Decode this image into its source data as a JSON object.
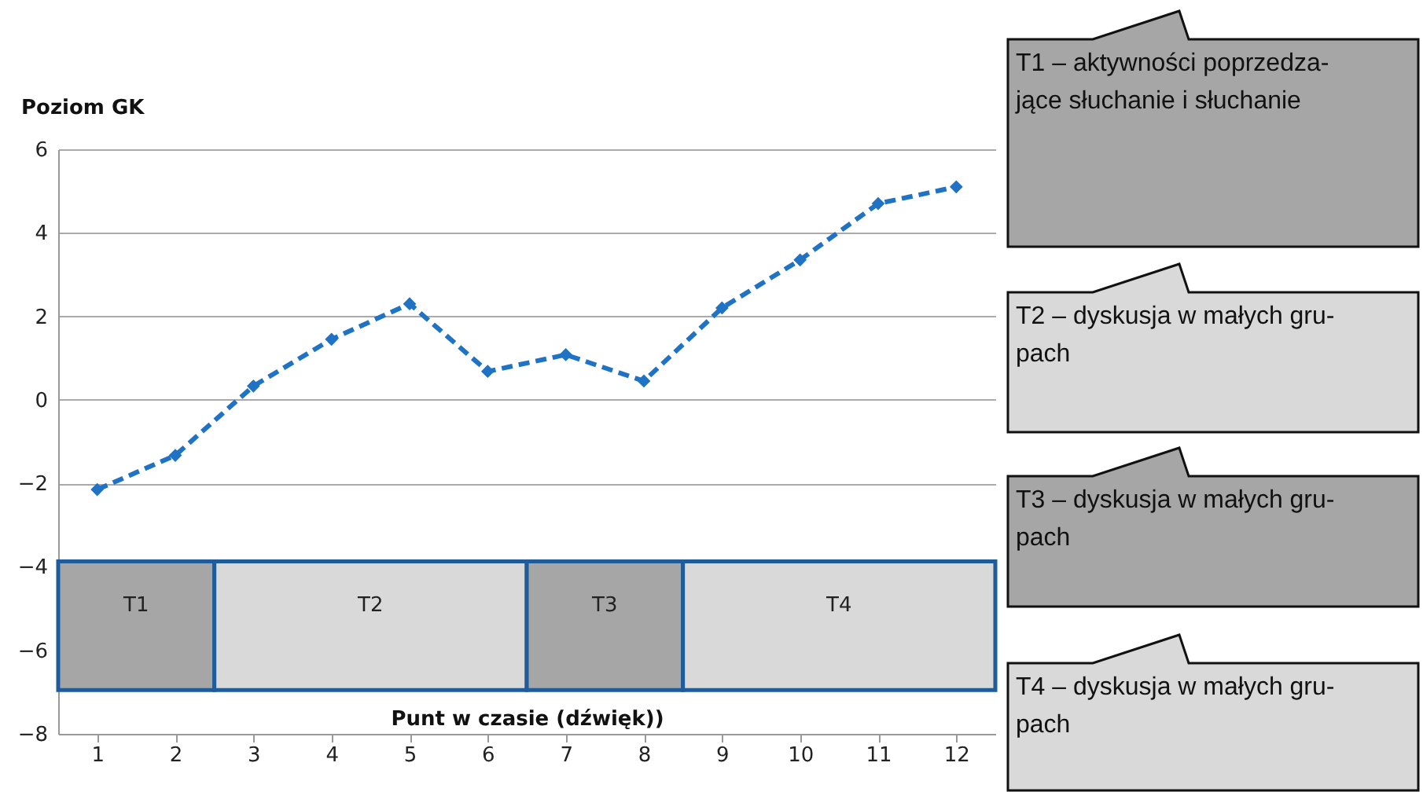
{
  "chart_data": {
    "type": "line",
    "xlabel": "Punt w czasie (dźwięk))",
    "ylabel": "Poziom GK",
    "x": [
      1,
      2,
      3,
      4,
      5,
      6,
      7,
      8,
      9,
      10,
      11,
      12
    ],
    "series": [
      {
        "color": "#1f72c4",
        "values": [
          -2.15,
          -1.33,
          0.33,
          1.45,
          2.3,
          0.68,
          1.08,
          0.45,
          2.2,
          3.35,
          4.7,
          5.1
        ]
      }
    ],
    "xlim": [
      0.5,
      12.5
    ],
    "xticks": [
      1,
      2,
      3,
      4,
      5,
      6,
      7,
      8,
      9,
      10,
      11,
      12
    ],
    "ylim": [
      -8,
      6
    ],
    "yticks": [
      -8,
      -6,
      -4,
      -2,
      0,
      2,
      4,
      6
    ],
    "grid": "y",
    "marker": "diamond",
    "line_style": "dashed",
    "bands": [
      {
        "axis": "x",
        "from": 0.5,
        "to": 2.5,
        "label": "T1",
        "color": "#a6a6a6"
      },
      {
        "axis": "x",
        "from": 2.5,
        "to": 6.5,
        "label": "T2",
        "color": "#d9d9d9"
      },
      {
        "axis": "x",
        "from": 6.5,
        "to": 8.5,
        "label": "T3",
        "color": "#a6a6a6"
      },
      {
        "axis": "x",
        "from": 8.5,
        "to": 12.5,
        "label": "T4",
        "color": "#d9d9d9"
      }
    ],
    "annotations": [
      "T1 – aktywności poprzedza- jące słuchanie i słuchanie",
      "T2 – dyskusja w małych gru- pach",
      "T3 – dyskusja w małych gru- pach",
      "T4 – dyskusja w małych gru- pach"
    ]
  }
}
